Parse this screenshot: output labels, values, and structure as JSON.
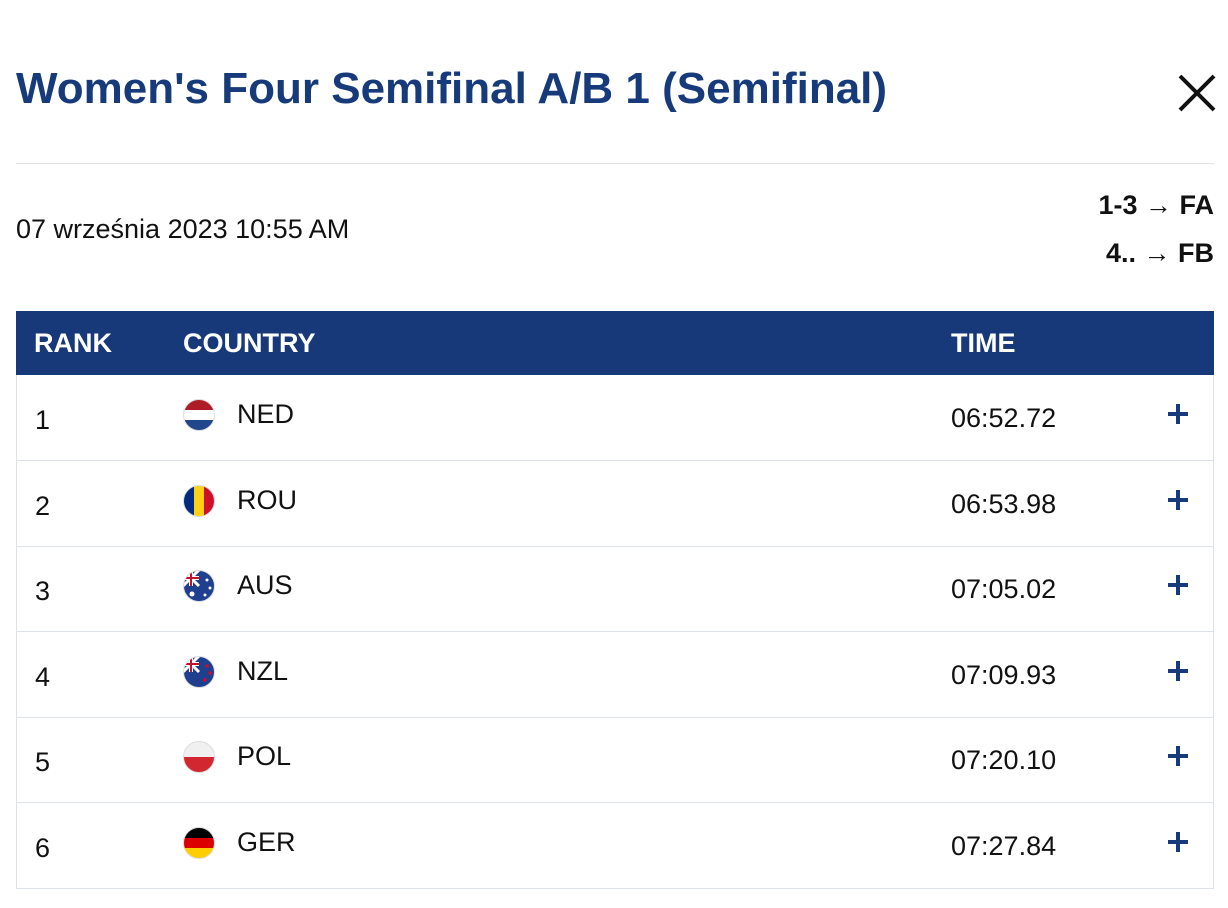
{
  "header": {
    "title": "Women's Four Semifinal A/B 1 (Semifinal)"
  },
  "info": {
    "date": "07 września 2023 10:55 AM",
    "progression": [
      "1-3 → FA",
      "4.. → FB"
    ]
  },
  "table": {
    "columns": [
      "RANK",
      "COUNTRY",
      "TIME"
    ],
    "rows": [
      [
        "1",
        "NED",
        "06:52.72"
      ],
      [
        "2",
        "ROU",
        "06:53.98"
      ],
      [
        "3",
        "AUS",
        "07:05.02"
      ],
      [
        "4",
        "NZL",
        "07:09.93"
      ],
      [
        "5",
        "POL",
        "07:20.10"
      ],
      [
        "6",
        "GER",
        "07:27.84"
      ]
    ]
  }
}
